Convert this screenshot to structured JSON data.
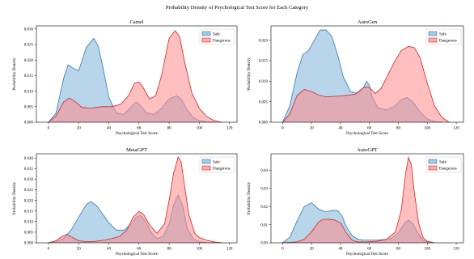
{
  "figure": {
    "title": "Probability Density of Psychological Test Score for Each Category"
  },
  "colors": {
    "safe_fill": "#7fb3d9",
    "safe_line": "#2b7bbb",
    "dangerous_fill": "#ff8a8a",
    "dangerous_line": "#e01f1f"
  },
  "chart_data": [
    {
      "type": "area",
      "title": "Camel",
      "xlabel": "Psychological Test Score",
      "ylabel": "Probability Density",
      "xlim": [
        -8,
        125
      ],
      "ylim": [
        0,
        0.031
      ],
      "xticks": [
        0,
        20,
        40,
        60,
        80,
        100,
        120
      ],
      "yticks": [
        0.0,
        0.005,
        0.01,
        0.015,
        0.02,
        0.025,
        0.03
      ],
      "ytick_labels": [
        "0.000",
        "0.005",
        "0.010",
        "0.015",
        "0.020",
        "0.025",
        "0.030"
      ],
      "legend": "top-right",
      "series": [
        {
          "name": "Safe",
          "x": [
            0,
            5,
            10,
            13,
            16,
            20,
            25,
            30,
            33,
            36,
            40,
            45,
            50,
            55,
            58,
            61,
            65,
            70,
            75,
            80,
            85,
            88,
            92,
            96,
            100,
            105,
            110
          ],
          "y": [
            0,
            0.003,
            0.014,
            0.0185,
            0.0175,
            0.0165,
            0.024,
            0.027,
            0.0245,
            0.018,
            0.008,
            0.003,
            0.0025,
            0.005,
            0.0065,
            0.0055,
            0.003,
            0.0025,
            0.0045,
            0.0075,
            0.0085,
            0.0075,
            0.004,
            0.0015,
            0.0005,
            0.0001,
            0
          ]
        },
        {
          "name": "Dangerous",
          "x": [
            0,
            5,
            10,
            14,
            18,
            22,
            28,
            35,
            42,
            48,
            53,
            57,
            60,
            63,
            67,
            71,
            75,
            80,
            84,
            87,
            90,
            95,
            100,
            105,
            110,
            115
          ],
          "y": [
            0,
            0.002,
            0.0065,
            0.0078,
            0.0065,
            0.0048,
            0.0045,
            0.005,
            0.005,
            0.0058,
            0.0085,
            0.0125,
            0.013,
            0.011,
            0.0075,
            0.0085,
            0.015,
            0.027,
            0.0295,
            0.0275,
            0.02,
            0.0095,
            0.0045,
            0.0018,
            0.0005,
            0
          ]
        }
      ]
    },
    {
      "type": "area",
      "title": "AutoGen",
      "xlabel": "Psychological Test Score",
      "ylabel": "Probability Density",
      "xlim": [
        -8,
        125
      ],
      "ylim": [
        0,
        0.0235
      ],
      "xticks": [
        0,
        20,
        40,
        60,
        80,
        100,
        120
      ],
      "yticks": [
        0.0,
        0.005,
        0.01,
        0.015,
        0.02
      ],
      "ytick_labels": [
        "0.000",
        "0.005",
        "0.010",
        "0.015",
        "0.020"
      ],
      "legend": "top-right",
      "series": [
        {
          "name": "Safe",
          "x": [
            0,
            5,
            10,
            14,
            18,
            22,
            26,
            30,
            34,
            38,
            42,
            47,
            52,
            56,
            58,
            60,
            62,
            66,
            72,
            78,
            82,
            86,
            90,
            95,
            100,
            105,
            110
          ],
          "y": [
            0,
            0.004,
            0.012,
            0.0165,
            0.0175,
            0.02,
            0.0225,
            0.0225,
            0.021,
            0.0165,
            0.011,
            0.0075,
            0.007,
            0.0085,
            0.01,
            0.009,
            0.006,
            0.0035,
            0.003,
            0.004,
            0.0055,
            0.006,
            0.005,
            0.0025,
            0.0008,
            0.0002,
            0
          ]
        },
        {
          "name": "Dangerous",
          "x": [
            0,
            5,
            10,
            15,
            20,
            25,
            30,
            40,
            50,
            56,
            60,
            64,
            68,
            72,
            77,
            82,
            87,
            91,
            95,
            100,
            105,
            110,
            115
          ],
          "y": [
            0,
            0.002,
            0.0065,
            0.008,
            0.0075,
            0.0066,
            0.0062,
            0.0064,
            0.0068,
            0.0085,
            0.0085,
            0.007,
            0.0082,
            0.011,
            0.0145,
            0.0175,
            0.0185,
            0.0182,
            0.0158,
            0.0095,
            0.004,
            0.0012,
            0
          ]
        }
      ]
    },
    {
      "type": "area",
      "title": "MetaGPT",
      "xlabel": "Psychological Test Score",
      "ylabel": "Probability Density",
      "xlim": [
        -8,
        125
      ],
      "ylim": [
        0,
        0.042
      ],
      "xticks": [
        0,
        20,
        40,
        60,
        80,
        100,
        120
      ],
      "yticks": [
        0.0,
        0.005,
        0.01,
        0.015,
        0.02,
        0.025,
        0.03,
        0.035,
        0.04
      ],
      "ytick_labels": [
        "0.000",
        "0.005",
        "0.010",
        "0.015",
        "0.020",
        "0.025",
        "0.030",
        "0.035",
        "0.040"
      ],
      "legend": "top-right",
      "series": [
        {
          "name": "Safe",
          "x": [
            0,
            5,
            10,
            15,
            20,
            25,
            28,
            32,
            36,
            40,
            45,
            50,
            55,
            58,
            61,
            64,
            68,
            72,
            76,
            80,
            83,
            86,
            89,
            92,
            96,
            100,
            105,
            110
          ],
          "y": [
            0,
            0.0005,
            0.002,
            0.006,
            0.012,
            0.018,
            0.0195,
            0.0175,
            0.0135,
            0.0095,
            0.006,
            0.006,
            0.009,
            0.012,
            0.013,
            0.0105,
            0.005,
            0.002,
            0.003,
            0.009,
            0.018,
            0.0225,
            0.0175,
            0.007,
            0.0018,
            0.0005,
            0.0001,
            0
          ]
        },
        {
          "name": "Dangerous",
          "x": [
            0,
            5,
            9,
            12,
            16,
            20,
            25,
            30,
            36,
            42,
            47,
            52,
            56,
            60,
            63,
            67,
            72,
            77,
            80,
            83,
            86,
            88,
            90,
            93,
            97,
            100,
            105,
            110,
            115
          ],
          "y": [
            0,
            0.001,
            0.003,
            0.004,
            0.0025,
            0.001,
            0.0005,
            0.0006,
            0.0012,
            0.002,
            0.003,
            0.006,
            0.012,
            0.0148,
            0.0135,
            0.0085,
            0.0045,
            0.009,
            0.02,
            0.033,
            0.0405,
            0.038,
            0.028,
            0.0135,
            0.0045,
            0.0025,
            0.0012,
            0.0004,
            0
          ]
        }
      ]
    },
    {
      "type": "area",
      "title": "AutoGPT",
      "xlabel": "Psychological Test Score",
      "ylabel": "Probability Density",
      "xlim": [
        -8,
        125
      ],
      "ylim": [
        0,
        0.049
      ],
      "xticks": [
        0,
        20,
        40,
        60,
        80,
        100,
        120
      ],
      "yticks": [
        0.0,
        0.01,
        0.02,
        0.03,
        0.04
      ],
      "ytick_labels": [
        "0.00",
        "0.01",
        "0.02",
        "0.03",
        "0.04"
      ],
      "legend": "top-right",
      "series": [
        {
          "name": "Safe",
          "x": [
            0,
            5,
            10,
            15,
            20,
            25,
            30,
            34,
            38,
            41,
            44,
            48,
            52,
            56,
            60,
            65,
            70,
            75,
            80,
            84,
            87,
            90,
            93,
            97,
            100,
            105
          ],
          "y": [
            0,
            0.003,
            0.012,
            0.02,
            0.022,
            0.0185,
            0.017,
            0.0178,
            0.0178,
            0.015,
            0.009,
            0.004,
            0.002,
            0.0015,
            0.0015,
            0.0015,
            0.0018,
            0.0025,
            0.0055,
            0.0105,
            0.0125,
            0.0105,
            0.006,
            0.0015,
            0.0004,
            0
          ]
        },
        {
          "name": "Dangerous",
          "x": [
            0,
            10,
            15,
            20,
            25,
            28,
            32,
            36,
            40,
            44,
            48,
            52,
            58,
            65,
            72,
            78,
            82,
            85,
            87,
            89,
            91,
            94,
            97,
            100,
            105
          ],
          "y": [
            0,
            0.0005,
            0.002,
            0.006,
            0.0115,
            0.0128,
            0.013,
            0.0125,
            0.011,
            0.0055,
            0.0015,
            0.0005,
            0.0005,
            0.0008,
            0.002,
            0.006,
            0.018,
            0.038,
            0.047,
            0.043,
            0.028,
            0.011,
            0.003,
            0.0008,
            0
          ]
        }
      ]
    }
  ]
}
